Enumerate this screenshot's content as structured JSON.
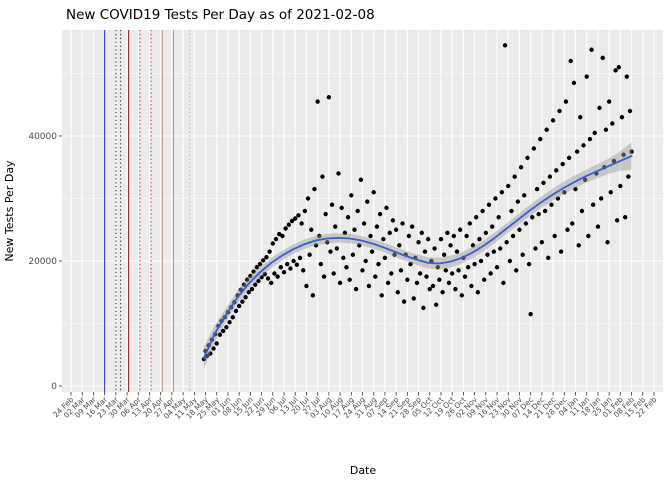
{
  "chart_data": {
    "type": "scatter",
    "title": "New COVID19 Tests Per Day as of 2021-02-08",
    "xlabel": "Date",
    "ylabel": "New Tests Per Day",
    "panel_bg": "#EBEBEB",
    "grid_color": "#FFFFFF",
    "point_color": "#000000",
    "line_color": "#3A5FCD",
    "ribbon_color": "#999999",
    "axis_text_color": "#4D4D4D",
    "ylim": [
      0,
      56000
    ],
    "y_ticks": [
      {
        "value": 0,
        "label": "0"
      },
      {
        "value": 20000,
        "label": "20000"
      },
      {
        "value": 40000,
        "label": "40000"
      }
    ],
    "y_minor": [
      10000,
      30000,
      50000
    ],
    "x_axis": {
      "start_day": 0,
      "end_day": 364,
      "tick_interval_days": 7,
      "tick_labels": [
        "24 Feb",
        "02 Mar",
        "09 Mar",
        "16 Mar",
        "23 Mar",
        "30 Mar",
        "06 Apr",
        "13 Apr",
        "20 Apr",
        "27 Apr",
        "04 May",
        "11 May",
        "18 May",
        "25 May",
        "01 Jun",
        "08 Jun",
        "15 Jun",
        "22 Jun",
        "29 Jun",
        "06 Jul",
        "13 Jul",
        "20 Jul",
        "27 Jul",
        "03 Aug",
        "10 Aug",
        "17 Aug",
        "24 Aug",
        "31 Aug",
        "07 Sep",
        "14 Sep",
        "21 Sep",
        "28 Sep",
        "05 Oct",
        "12 Oct",
        "19 Oct",
        "26 Oct",
        "02 Nov",
        "09 Nov",
        "16 Nov",
        "23 Nov",
        "30 Nov",
        "07 Dec",
        "14 Dec",
        "21 Dec",
        "28 Dec",
        "04 Jan",
        "11 Jan",
        "18 Jan",
        "25 Jan",
        "01 Feb",
        "08 Feb",
        "15 Feb",
        "22 Feb"
      ]
    },
    "events": [
      {
        "day": 21,
        "color": "#2E3BC7",
        "style": "solid"
      },
      {
        "day": 28,
        "color": "#3A3A3A",
        "style": "dotted"
      },
      {
        "day": 31,
        "color": "#3A3A3A",
        "style": "dotted"
      },
      {
        "day": 36,
        "color": "#8E2323",
        "style": "solid"
      },
      {
        "day": 43,
        "color": "#C43A3A",
        "style": "dotted"
      },
      {
        "day": 50,
        "color": "#C43A3A",
        "style": "dotted"
      },
      {
        "day": 57,
        "color": "#D98880",
        "style": "solid"
      },
      {
        "day": 64,
        "color": "#D98880",
        "style": "solid"
      },
      {
        "day": 74,
        "color": "#E6A5A1",
        "style": "dotted"
      }
    ],
    "smooth": {
      "days": [
        83,
        90,
        97,
        104,
        111,
        118,
        125,
        132,
        139,
        146,
        153,
        160,
        167,
        174,
        181,
        188,
        195,
        202,
        209,
        216,
        223,
        230,
        237,
        244,
        251,
        258,
        265,
        272,
        279,
        286,
        293,
        300,
        307,
        314,
        321,
        328,
        335,
        342,
        350
      ],
      "values": [
        4500,
        8500,
        11500,
        14200,
        16400,
        18200,
        19700,
        20900,
        21900,
        22700,
        23300,
        23600,
        23700,
        23600,
        23300,
        22800,
        22200,
        21500,
        20800,
        20200,
        19700,
        19600,
        19900,
        20500,
        21400,
        22500,
        23800,
        25200,
        26600,
        28000,
        29300,
        30500,
        31600,
        32600,
        33500,
        34300,
        35100,
        35900,
        36800
      ],
      "band": [
        1800,
        1300,
        1100,
        1000,
        900,
        850,
        800,
        750,
        750,
        750,
        750,
        750,
        750,
        750,
        750,
        750,
        750,
        800,
        800,
        850,
        900,
        950,
        950,
        900,
        900,
        850,
        850,
        850,
        850,
        900,
        900,
        950,
        1000,
        1000,
        1050,
        1100,
        1200,
        1500,
        2200
      ]
    },
    "points": [
      [
        83,
        4300
      ],
      [
        84,
        5600
      ],
      [
        85,
        4800
      ],
      [
        86,
        6500
      ],
      [
        87,
        5200
      ],
      [
        88,
        7400
      ],
      [
        89,
        6000
      ],
      [
        90,
        8300
      ],
      [
        91,
        6800
      ],
      [
        92,
        9600
      ],
      [
        93,
        8200
      ],
      [
        94,
        10400
      ],
      [
        95,
        8800
      ],
      [
        96,
        11000
      ],
      [
        97,
        9400
      ],
      [
        98,
        11800
      ],
      [
        99,
        10200
      ],
      [
        100,
        12600
      ],
      [
        101,
        11000
      ],
      [
        102,
        13400
      ],
      [
        103,
        12000
      ],
      [
        104,
        14500
      ],
      [
        105,
        12800
      ],
      [
        106,
        15400
      ],
      [
        107,
        13500
      ],
      [
        108,
        16200
      ],
      [
        109,
        14200
      ],
      [
        110,
        17000
      ],
      [
        111,
        15000
      ],
      [
        112,
        17600
      ],
      [
        113,
        15500
      ],
      [
        114,
        18300
      ],
      [
        115,
        16200
      ],
      [
        116,
        19000
      ],
      [
        117,
        16800
      ],
      [
        118,
        19500
      ],
      [
        119,
        17400
      ],
      [
        120,
        20100
      ],
      [
        121,
        17900
      ],
      [
        122,
        20600
      ],
      [
        123,
        17200
      ],
      [
        124,
        21500
      ],
      [
        125,
        16500
      ],
      [
        126,
        22800
      ],
      [
        127,
        18000
      ],
      [
        128,
        23500
      ],
      [
        129,
        17500
      ],
      [
        130,
        24300
      ],
      [
        131,
        19000
      ],
      [
        132,
        24000
      ],
      [
        133,
        18200
      ],
      [
        134,
        25200
      ],
      [
        135,
        19500
      ],
      [
        136,
        25800
      ],
      [
        137,
        18800
      ],
      [
        138,
        26400
      ],
      [
        139,
        20000
      ],
      [
        140,
        26800
      ],
      [
        141,
        19400
      ],
      [
        142,
        27300
      ],
      [
        143,
        20500
      ],
      [
        144,
        26000
      ],
      [
        145,
        18500
      ],
      [
        146,
        28000
      ],
      [
        147,
        16000
      ],
      [
        148,
        30000
      ],
      [
        149,
        21000
      ],
      [
        150,
        25000
      ],
      [
        151,
        14500
      ],
      [
        152,
        31500
      ],
      [
        153,
        22500
      ],
      [
        154,
        45500
      ],
      [
        155,
        24000
      ],
      [
        156,
        19500
      ],
      [
        157,
        33500
      ],
      [
        158,
        17500
      ],
      [
        159,
        27500
      ],
      [
        160,
        23000
      ],
      [
        161,
        46200
      ],
      [
        162,
        21500
      ],
      [
        163,
        29000
      ],
      [
        164,
        18000
      ],
      [
        165,
        25500
      ],
      [
        166,
        22000
      ],
      [
        167,
        34000
      ],
      [
        168,
        16500
      ],
      [
        169,
        28500
      ],
      [
        170,
        20500
      ],
      [
        171,
        24500
      ],
      [
        172,
        19000
      ],
      [
        173,
        27000
      ],
      [
        174,
        17000
      ],
      [
        175,
        30500
      ],
      [
        176,
        21000
      ],
      [
        177,
        25000
      ],
      [
        178,
        15500
      ],
      [
        179,
        28000
      ],
      [
        180,
        22500
      ],
      [
        181,
        33000
      ],
      [
        182,
        18500
      ],
      [
        183,
        26000
      ],
      [
        184,
        20000
      ],
      [
        185,
        29500
      ],
      [
        186,
        16000
      ],
      [
        187,
        24000
      ],
      [
        188,
        21500
      ],
      [
        189,
        31000
      ],
      [
        190,
        17500
      ],
      [
        191,
        25500
      ],
      [
        192,
        19500
      ],
      [
        193,
        27500
      ],
      [
        194,
        14500
      ],
      [
        195,
        23500
      ],
      [
        196,
        20500
      ],
      [
        197,
        28500
      ],
      [
        198,
        16500
      ],
      [
        199,
        24500
      ],
      [
        200,
        18000
      ],
      [
        201,
        26500
      ],
      [
        202,
        21000
      ],
      [
        203,
        25000
      ],
      [
        204,
        15000
      ],
      [
        205,
        22500
      ],
      [
        206,
        18500
      ],
      [
        207,
        26000
      ],
      [
        208,
        13500
      ],
      [
        209,
        21000
      ],
      [
        210,
        17000
      ],
      [
        211,
        24000
      ],
      [
        212,
        19500
      ],
      [
        213,
        25500
      ],
      [
        214,
        14000
      ],
      [
        215,
        20500
      ],
      [
        216,
        16500
      ],
      [
        217,
        23000
      ],
      [
        218,
        18000
      ],
      [
        219,
        24500
      ],
      [
        220,
        12500
      ],
      [
        221,
        21500
      ],
      [
        222,
        17500
      ],
      [
        223,
        23500
      ],
      [
        224,
        15500
      ],
      [
        225,
        20000
      ],
      [
        226,
        16000
      ],
      [
        227,
        22000
      ],
      [
        228,
        13000
      ],
      [
        229,
        19000
      ],
      [
        230,
        17000
      ],
      [
        231,
        23500
      ],
      [
        232,
        15000
      ],
      [
        233,
        21000
      ],
      [
        234,
        18500
      ],
      [
        235,
        24500
      ],
      [
        236,
        16500
      ],
      [
        237,
        22500
      ],
      [
        238,
        18000
      ],
      [
        239,
        24000
      ],
      [
        240,
        15500
      ],
      [
        241,
        21500
      ],
      [
        242,
        18500
      ],
      [
        243,
        25000
      ],
      [
        244,
        14500
      ],
      [
        245,
        20500
      ],
      [
        246,
        17500
      ],
      [
        247,
        24000
      ],
      [
        248,
        19000
      ],
      [
        249,
        26000
      ],
      [
        250,
        16000
      ],
      [
        251,
        22500
      ],
      [
        252,
        19500
      ],
      [
        253,
        27000
      ],
      [
        254,
        15000
      ],
      [
        255,
        23500
      ],
      [
        256,
        20000
      ],
      [
        257,
        28000
      ],
      [
        258,
        17000
      ],
      [
        259,
        24500
      ],
      [
        260,
        21000
      ],
      [
        261,
        29000
      ],
      [
        262,
        18000
      ],
      [
        263,
        25500
      ],
      [
        264,
        21500
      ],
      [
        265,
        30000
      ],
      [
        266,
        19000
      ],
      [
        267,
        27000
      ],
      [
        268,
        22000
      ],
      [
        269,
        31000
      ],
      [
        270,
        16500
      ],
      [
        271,
        54500
      ],
      [
        272,
        23000
      ],
      [
        273,
        32000
      ],
      [
        274,
        20000
      ],
      [
        275,
        28000
      ],
      [
        276,
        24000
      ],
      [
        277,
        33500
      ],
      [
        278,
        18500
      ],
      [
        279,
        29500
      ],
      [
        280,
        25000
      ],
      [
        281,
        35000
      ],
      [
        282,
        21000
      ],
      [
        283,
        30500
      ],
      [
        284,
        26000
      ],
      [
        285,
        36500
      ],
      [
        286,
        19500
      ],
      [
        287,
        11500
      ],
      [
        288,
        27000
      ],
      [
        289,
        38000
      ],
      [
        290,
        22000
      ],
      [
        291,
        31500
      ],
      [
        292,
        27500
      ],
      [
        293,
        39500
      ],
      [
        294,
        23000
      ],
      [
        295,
        32500
      ],
      [
        296,
        28000
      ],
      [
        297,
        41000
      ],
      [
        298,
        20500
      ],
      [
        299,
        33500
      ],
      [
        300,
        29000
      ],
      [
        301,
        42500
      ],
      [
        302,
        24000
      ],
      [
        303,
        34500
      ],
      [
        304,
        30000
      ],
      [
        305,
        44000
      ],
      [
        306,
        21500
      ],
      [
        307,
        35500
      ],
      [
        308,
        31000
      ],
      [
        309,
        45500
      ],
      [
        310,
        25000
      ],
      [
        311,
        36500
      ],
      [
        312,
        52000
      ],
      [
        313,
        26000
      ],
      [
        314,
        48500
      ],
      [
        315,
        31500
      ],
      [
        316,
        37500
      ],
      [
        317,
        22500
      ],
      [
        318,
        43000
      ],
      [
        319,
        28000
      ],
      [
        320,
        38500
      ],
      [
        321,
        33000
      ],
      [
        322,
        49500
      ],
      [
        323,
        24000
      ],
      [
        324,
        39500
      ],
      [
        325,
        53800
      ],
      [
        326,
        29000
      ],
      [
        327,
        40500
      ],
      [
        328,
        34000
      ],
      [
        329,
        25500
      ],
      [
        330,
        44500
      ],
      [
        331,
        30000
      ],
      [
        332,
        52500
      ],
      [
        333,
        35000
      ],
      [
        334,
        41000
      ],
      [
        335,
        23000
      ],
      [
        336,
        45500
      ],
      [
        337,
        31000
      ],
      [
        338,
        42000
      ],
      [
        339,
        36000
      ],
      [
        340,
        50500
      ],
      [
        341,
        26500
      ],
      [
        342,
        51000
      ],
      [
        343,
        32000
      ],
      [
        344,
        43000
      ],
      [
        345,
        37000
      ],
      [
        346,
        27000
      ],
      [
        347,
        49500
      ],
      [
        348,
        33500
      ],
      [
        349,
        44000
      ],
      [
        350,
        37500
      ]
    ]
  }
}
